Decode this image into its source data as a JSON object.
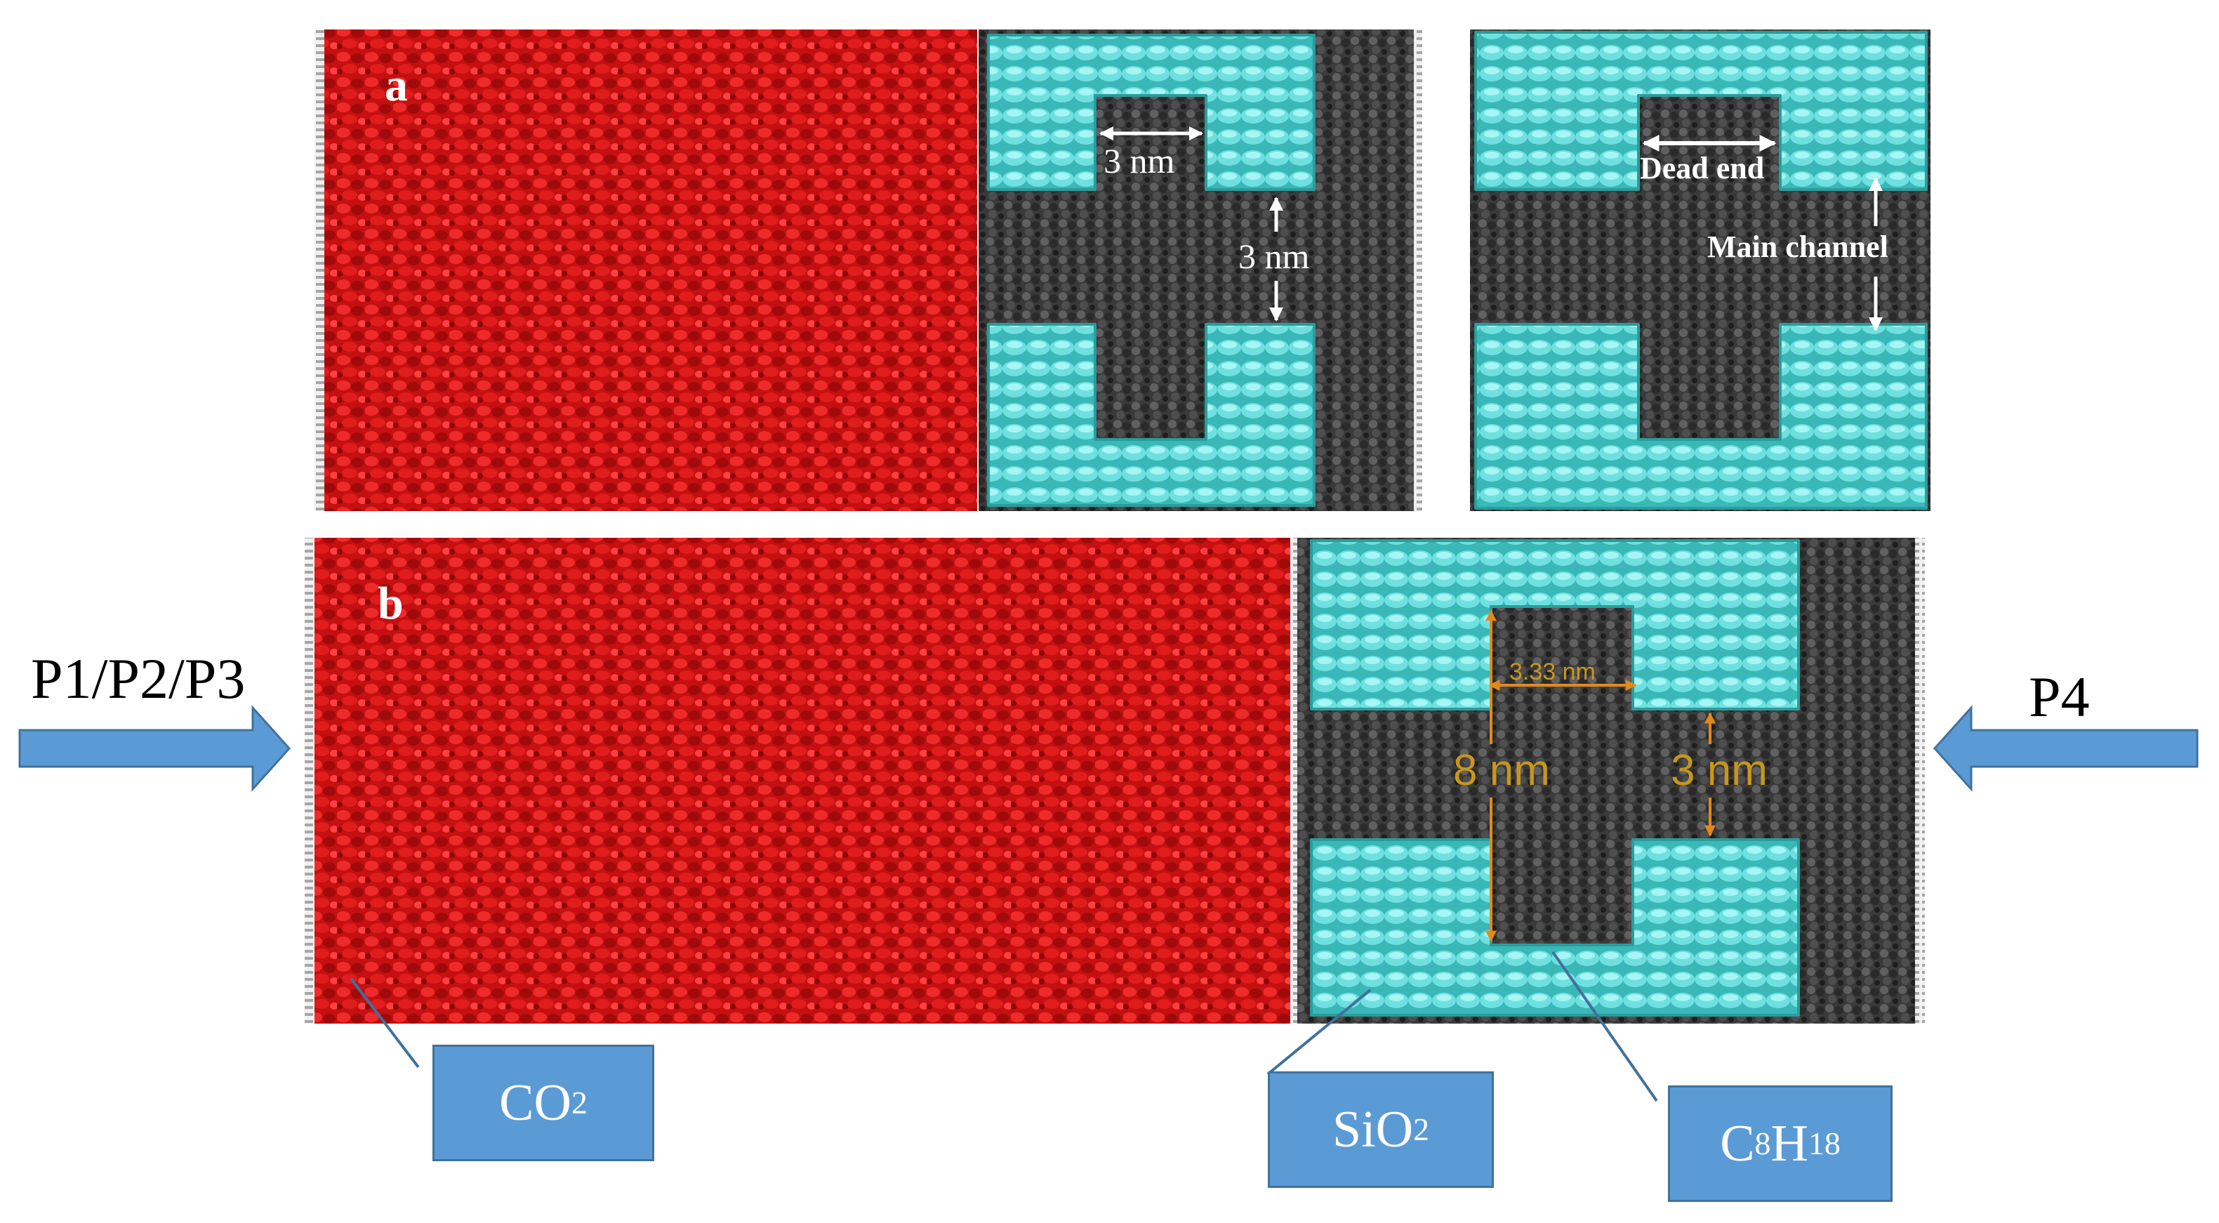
{
  "panels": {
    "a": {
      "letter": "a"
    },
    "b": {
      "letter": "b"
    }
  },
  "annotations": {
    "a_width": "3 nm",
    "a_height": "3 nm",
    "dead_end": "Dead end",
    "main_channel": "Main channel",
    "b_width": "3.33 nm",
    "b_height_large": "8 nm",
    "b_height_small": "3 nm"
  },
  "pressures": {
    "left": "P1/P2/P3",
    "right": "P4"
  },
  "callouts": {
    "co2": {
      "main": "CO",
      "sub": "2"
    },
    "sio2": {
      "main": "SiO",
      "sub": "2"
    },
    "c8h18": {
      "part1": "C",
      "sub1": "8",
      "part2": "H",
      "sub2": "18"
    }
  },
  "colors": {
    "co2_red": "#d31414",
    "sio2_cyan": "#46c8c8",
    "octane_gray": "#3c3c3c",
    "arrow_blue": "#5b9bd5",
    "dimension_gold": "#c8961e"
  }
}
